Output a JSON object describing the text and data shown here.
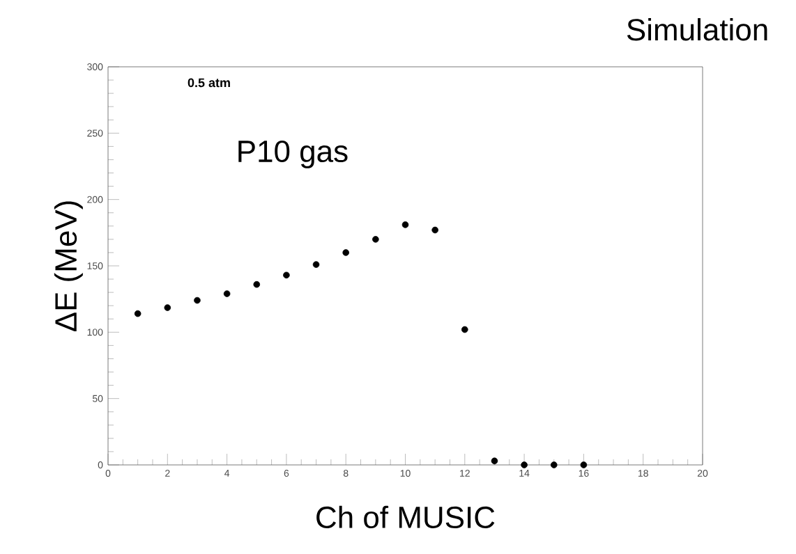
{
  "chart_data": {
    "type": "scatter",
    "xlabel": "Ch of MUSIC",
    "ylabel": "ΔE (MeV)",
    "annotations": [
      "Simulation",
      "0.5 atm",
      "P10 gas"
    ],
    "x": [
      1,
      2,
      3,
      4,
      5,
      6,
      7,
      8,
      9,
      10,
      11,
      12,
      13,
      14,
      15,
      16
    ],
    "values": [
      114,
      118.5,
      124,
      129,
      136,
      143,
      151,
      160,
      170,
      181,
      177,
      102,
      3,
      0,
      0,
      0
    ],
    "color": "#000000",
    "marker": "circle",
    "xlim": [
      0,
      20
    ],
    "ylim": [
      0,
      300
    ],
    "xticks": [
      0,
      2,
      4,
      6,
      8,
      10,
      12,
      14,
      16,
      18,
      20
    ],
    "yticks": [
      0,
      50,
      100,
      150,
      200,
      250,
      300
    ],
    "grid": false
  }
}
